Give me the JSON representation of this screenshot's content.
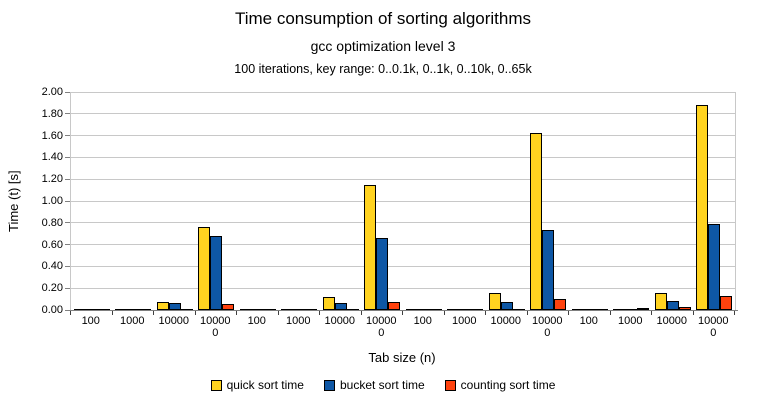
{
  "chart_data": {
    "type": "bar",
    "title": "Time consumption of sorting algorithms",
    "subtitle": "gcc optimization level 3",
    "annotation": "100 iterations, key range: 0..0.1k, 0..1k, 0..10k, 0..65k",
    "xlabel": "Tab size (n)",
    "ylabel": "Time (t) [s]",
    "ylim": [
      0,
      2.0
    ],
    "y_tick_step": 0.2,
    "y_tick_labels": [
      "0.00",
      "0.20",
      "0.40",
      "0.60",
      "0.80",
      "1.00",
      "1.20",
      "1.40",
      "1.60",
      "1.80",
      "2.00"
    ],
    "grid": true,
    "legend_position": "bottom",
    "group_key_ranges": [
      "0..0.1k",
      "0..1k",
      "0..10k",
      "0..65k"
    ],
    "categories": [
      "100",
      "1000",
      "10000",
      "100000",
      "100",
      "1000",
      "10000",
      "100000",
      "100",
      "1000",
      "10000",
      "100000",
      "100",
      "1000",
      "10000",
      "100000"
    ],
    "x_tick_display": [
      "100",
      "1000",
      "10000",
      "10000\n0",
      "100",
      "1000",
      "10000",
      "10000\n0",
      "100",
      "1000",
      "10000",
      "10000\n0",
      "100",
      "1000",
      "10000",
      "10000\n0"
    ],
    "series": [
      {
        "name": "quick sort time",
        "color": "#FFD320",
        "values": [
          0.002,
          0.01,
          0.075,
          0.76,
          0.002,
          0.01,
          0.115,
          1.15,
          0.002,
          0.006,
          0.155,
          1.62,
          0.002,
          0.006,
          0.155,
          1.88
        ]
      },
      {
        "name": "bucket sort time",
        "color": "#0E57A5",
        "values": [
          0.002,
          0.008,
          0.065,
          0.68,
          0.002,
          0.008,
          0.065,
          0.66,
          0.002,
          0.004,
          0.075,
          0.735,
          0.004,
          0.012,
          0.085,
          0.79
        ]
      },
      {
        "name": "counting sort time",
        "color": "#FF420E",
        "values": [
          0.002,
          0.002,
          0.004,
          0.055,
          0.002,
          0.002,
          0.008,
          0.073,
          0.004,
          0.005,
          0.01,
          0.1,
          0.013,
          0.014,
          0.026,
          0.13
        ]
      }
    ]
  }
}
